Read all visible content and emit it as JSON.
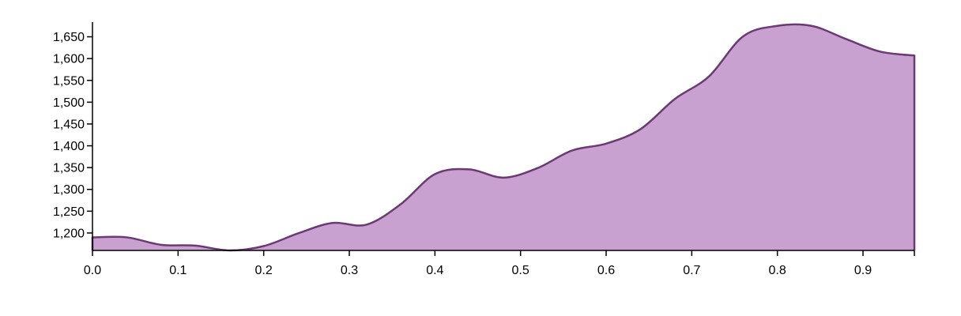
{
  "chart_data": {
    "type": "area",
    "title": "",
    "xlabel": "",
    "ylabel": "",
    "xlim": [
      0,
      0.96
    ],
    "ylim": [
      1160,
      1680
    ],
    "x_ticks": [
      0.0,
      0.1,
      0.2,
      0.3,
      0.4,
      0.5,
      0.6,
      0.7,
      0.8,
      0.9
    ],
    "x_tick_labels": [
      "0.0",
      "0.1",
      "0.2",
      "0.3",
      "0.4",
      "0.5",
      "0.6",
      "0.7",
      "0.8",
      "0.9"
    ],
    "y_ticks": [
      1200,
      1250,
      1300,
      1350,
      1400,
      1450,
      1500,
      1550,
      1600,
      1650
    ],
    "y_tick_labels": [
      "1,200",
      "1,250",
      "1,300",
      "1,350",
      "1,400",
      "1,450",
      "1,500",
      "1,550",
      "1,600",
      "1,650"
    ],
    "grid": false,
    "colors": {
      "fill": "#c9a1d1",
      "stroke": "#6b3a74"
    },
    "series": [
      {
        "x": [
          0.0,
          0.04,
          0.08,
          0.12,
          0.16,
          0.2,
          0.24,
          0.28,
          0.32,
          0.36,
          0.4,
          0.44,
          0.48,
          0.52,
          0.56,
          0.6,
          0.64,
          0.68,
          0.72,
          0.76,
          0.8,
          0.84,
          0.88,
          0.92,
          0.96
        ],
        "values": [
          1190,
          1190,
          1173,
          1171,
          1160,
          1170,
          1199,
          1223,
          1219,
          1266,
          1335,
          1346,
          1327,
          1349,
          1389,
          1405,
          1438,
          1507,
          1559,
          1651,
          1675,
          1675,
          1645,
          1616,
          1607
        ]
      }
    ]
  }
}
